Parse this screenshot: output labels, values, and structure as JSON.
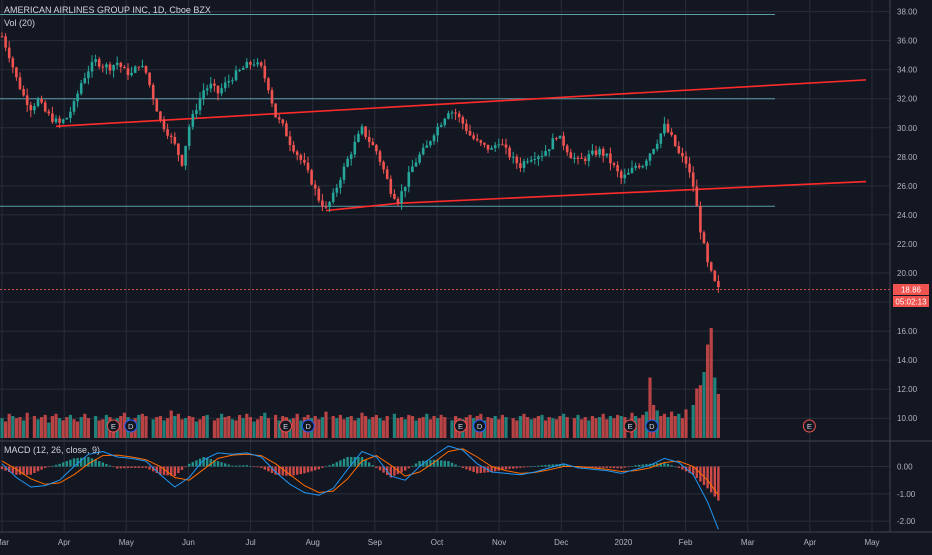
{
  "header": {
    "symbol_line": "AMERICAN AIRLINES GROUP INC, 1D, Cboe BZX",
    "volume_label": "Vol (20)",
    "macd_label": "MACD (12, 26, close, 9)"
  },
  "price_tag": {
    "value": "18.86",
    "countdown": "05:02:13"
  },
  "colors": {
    "background": "#131722",
    "grid": "#2a2e39",
    "up": "#26a69a",
    "down": "#ef5350",
    "trendline": "#ff2b2b",
    "hline": "#5b9ca8",
    "macd": "#2196f3",
    "signal": "#ff6d00",
    "text": "#b2b5be"
  },
  "chart_data": [
    {
      "type": "candlestick",
      "title": "AMERICAN AIRLINES GROUP INC, 1D, Cboe BZX",
      "x_ticks": [
        "Mar",
        "Apr",
        "May",
        "Jun",
        "Jul",
        "Aug",
        "Sep",
        "Oct",
        "Nov",
        "Dec",
        "2020",
        "Feb",
        "Mar",
        "Apr",
        "May"
      ],
      "y_ticks": [
        "38.00",
        "36.00",
        "34.00",
        "32.00",
        "30.00",
        "28.00",
        "26.00",
        "24.00",
        "22.00",
        "20.00",
        "18.00",
        "16.00",
        "14.00",
        "12.00",
        "10.00"
      ],
      "ylim": [
        8.5,
        38.8
      ],
      "last_price": 18.86,
      "close_path": [
        [
          0,
          36.3
        ],
        [
          2,
          35.0
        ],
        [
          4,
          33.4
        ],
        [
          6,
          32.2
        ],
        [
          8,
          31.4
        ],
        [
          10,
          31.9
        ],
        [
          12,
          31.1
        ],
        [
          14,
          30.6
        ],
        [
          16,
          30.3
        ],
        [
          18,
          30.7
        ],
        [
          20,
          31.6
        ],
        [
          22,
          33.1
        ],
        [
          24,
          34.0
        ],
        [
          26,
          34.6
        ],
        [
          28,
          34.3
        ],
        [
          30,
          34.2
        ],
        [
          32,
          34.5
        ],
        [
          34,
          33.9
        ],
        [
          36,
          33.7
        ],
        [
          38,
          34.4
        ],
        [
          40,
          33.8
        ],
        [
          42,
          32.1
        ],
        [
          44,
          30.5
        ],
        [
          46,
          29.7
        ],
        [
          48,
          28.8
        ],
        [
          50,
          27.6
        ],
        [
          52,
          30.1
        ],
        [
          54,
          31.4
        ],
        [
          56,
          32.6
        ],
        [
          58,
          32.9
        ],
        [
          60,
          32.4
        ],
        [
          62,
          33.0
        ],
        [
          64,
          33.5
        ],
        [
          66,
          33.9
        ],
        [
          68,
          34.3
        ],
        [
          70,
          34.5
        ],
        [
          72,
          34.1
        ],
        [
          74,
          32.8
        ],
        [
          76,
          30.8
        ],
        [
          78,
          30.1
        ],
        [
          80,
          29.0
        ],
        [
          82,
          28.2
        ],
        [
          84,
          27.4
        ],
        [
          86,
          26.3
        ],
        [
          88,
          25.1
        ],
        [
          90,
          24.4
        ],
        [
          92,
          25.3
        ],
        [
          94,
          26.6
        ],
        [
          96,
          27.8
        ],
        [
          98,
          28.9
        ],
        [
          100,
          29.9
        ],
        [
          102,
          29.1
        ],
        [
          104,
          28.4
        ],
        [
          106,
          27.1
        ],
        [
          108,
          25.7
        ],
        [
          110,
          25.0
        ],
        [
          112,
          26.1
        ],
        [
          114,
          27.3
        ],
        [
          116,
          28.1
        ],
        [
          118,
          28.7
        ],
        [
          120,
          29.7
        ],
        [
          122,
          30.4
        ],
        [
          124,
          31.2
        ],
        [
          126,
          31.0
        ],
        [
          128,
          30.3
        ],
        [
          130,
          29.5
        ],
        [
          132,
          29.0
        ],
        [
          134,
          28.7
        ],
        [
          136,
          28.5
        ],
        [
          138,
          29.1
        ],
        [
          140,
          28.4
        ],
        [
          142,
          27.8
        ],
        [
          144,
          27.4
        ],
        [
          146,
          27.9
        ],
        [
          148,
          28.1
        ],
        [
          150,
          28.2
        ],
        [
          152,
          28.7
        ],
        [
          154,
          29.5
        ],
        [
          156,
          28.9
        ],
        [
          158,
          28.1
        ],
        [
          160,
          27.7
        ],
        [
          162,
          27.9
        ],
        [
          164,
          28.2
        ],
        [
          166,
          28.4
        ],
        [
          168,
          28.0
        ],
        [
          170,
          27.3
        ],
        [
          172,
          26.5
        ],
        [
          174,
          26.8
        ],
        [
          176,
          27.4
        ],
        [
          178,
          27.5
        ],
        [
          180,
          28.3
        ],
        [
          182,
          29.1
        ],
        [
          184,
          30.1
        ],
        [
          186,
          29.3
        ],
        [
          188,
          28.2
        ],
        [
          190,
          27.6
        ],
        [
          192,
          26.0
        ],
        [
          194,
          23.0
        ],
        [
          196,
          20.6
        ],
        [
          198,
          19.3
        ],
        [
          199,
          18.86
        ]
      ]
    },
    {
      "type": "bar",
      "title": "Vol (20)",
      "relative_heights": [
        0.18,
        0.15,
        0.22,
        0.2,
        0.18,
        0.19,
        0.16,
        0.23,
        0.2,
        0.17,
        0.19,
        0.21,
        0.14,
        0.2,
        0.22,
        0.18,
        0.16,
        0.19,
        0.21,
        0.17,
        0.15,
        0.19,
        0.22,
        0.18,
        0.2,
        0.16,
        0.17,
        0.21,
        0.19,
        0.15,
        0.18,
        0.2,
        0.23,
        0.19,
        0.16,
        0.18,
        0.21,
        0.22,
        0.2,
        0.17,
        0.19,
        0.2,
        0.16,
        0.18,
        0.25,
        0.2,
        0.22,
        0.17,
        0.18,
        0.2,
        0.19,
        0.15,
        0.17,
        0.2,
        0.21,
        0.16,
        0.18,
        0.22,
        0.19,
        0.2,
        0.17,
        0.16,
        0.21,
        0.18,
        0.22,
        0.19,
        0.15,
        0.17,
        0.2,
        0.23,
        0.18,
        0.21,
        0.16,
        0.2,
        0.19,
        0.17,
        0.18,
        0.22,
        0.16,
        0.19,
        0.21,
        0.18,
        0.2,
        0.17,
        0.19,
        0.24,
        0.2,
        0.18,
        0.21,
        0.17,
        0.19,
        0.2,
        0.16,
        0.18,
        0.23,
        0.2,
        0.17,
        0.19,
        0.21,
        0.18,
        0.16,
        0.2,
        0.22,
        0.18,
        0.19,
        0.17,
        0.21,
        0.2,
        0.16,
        0.18,
        0.19,
        0.22,
        0.17,
        0.2,
        0.18,
        0.21,
        0.19,
        0.16,
        0.2,
        0.18,
        0.17,
        0.19,
        0.21,
        0.18,
        0.2,
        0.22,
        0.16,
        0.19,
        0.18,
        0.2,
        0.17,
        0.21,
        0.19,
        0.18,
        0.16,
        0.2,
        0.22,
        0.19,
        0.17,
        0.18,
        0.2,
        0.21,
        0.16,
        0.19,
        0.18,
        0.17,
        0.2,
        0.22,
        0.19,
        0.18,
        0.21,
        0.17,
        0.19,
        0.16,
        0.2,
        0.18,
        0.19,
        0.22,
        0.17,
        0.2,
        0.18,
        0.21,
        0.2,
        0.19,
        0.23,
        0.2,
        0.18,
        0.21,
        0.24,
        0.55,
        0.3,
        0.25,
        0.2,
        0.22,
        0.19,
        0.24,
        0.2,
        0.22,
        0.18,
        0.26,
        0.3,
        0.45,
        0.48,
        0.6,
        0.85,
        1.0,
        0.55,
        0.4
      ],
      "event_markers": [
        {
          "label": "E",
          "at": 0.128
        },
        {
          "label": "D",
          "at": 0.148
        },
        {
          "label": "E",
          "at": 0.326
        },
        {
          "label": "D",
          "at": 0.352
        },
        {
          "label": "E",
          "at": 0.527
        },
        {
          "label": "D",
          "at": 0.549
        },
        {
          "label": "E",
          "at": 0.722
        },
        {
          "label": "D",
          "at": 0.747
        },
        {
          "label": "E",
          "at": 0.928
        }
      ]
    },
    {
      "type": "line",
      "title": "MACD (12, 26, close, 9)",
      "y_ticks": [
        "0.00",
        "-1.00",
        "-2.00"
      ],
      "ylim": [
        -2.4,
        0.9
      ],
      "macd_line": [
        [
          0,
          0.1
        ],
        [
          4,
          -0.4
        ],
        [
          8,
          -0.75
        ],
        [
          12,
          -0.7
        ],
        [
          16,
          -0.5
        ],
        [
          20,
          0.0
        ],
        [
          24,
          0.45
        ],
        [
          28,
          0.55
        ],
        [
          32,
          0.35
        ],
        [
          36,
          0.3
        ],
        [
          40,
          0.2
        ],
        [
          44,
          -0.3
        ],
        [
          48,
          -0.75
        ],
        [
          52,
          -0.4
        ],
        [
          56,
          0.25
        ],
        [
          60,
          0.5
        ],
        [
          64,
          0.45
        ],
        [
          68,
          0.5
        ],
        [
          72,
          0.35
        ],
        [
          76,
          -0.2
        ],
        [
          80,
          -0.65
        ],
        [
          84,
          -0.95
        ],
        [
          88,
          -1.05
        ],
        [
          92,
          -0.8
        ],
        [
          96,
          -0.1
        ],
        [
          100,
          0.55
        ],
        [
          104,
          0.35
        ],
        [
          108,
          -0.35
        ],
        [
          112,
          -0.5
        ],
        [
          116,
          0.0
        ],
        [
          120,
          0.4
        ],
        [
          124,
          0.75
        ],
        [
          128,
          0.6
        ],
        [
          132,
          0.1
        ],
        [
          136,
          -0.2
        ],
        [
          140,
          -0.25
        ],
        [
          144,
          -0.3
        ],
        [
          148,
          -0.2
        ],
        [
          152,
          -0.05
        ],
        [
          156,
          0.1
        ],
        [
          160,
          -0.05
        ],
        [
          164,
          -0.1
        ],
        [
          168,
          -0.15
        ],
        [
          172,
          -0.25
        ],
        [
          176,
          -0.1
        ],
        [
          180,
          0.05
        ],
        [
          184,
          0.3
        ],
        [
          188,
          0.15
        ],
        [
          192,
          -0.3
        ],
        [
          196,
          -1.3
        ],
        [
          199,
          -2.3
        ]
      ],
      "signal_line": [
        [
          0,
          0.2
        ],
        [
          4,
          -0.1
        ],
        [
          8,
          -0.45
        ],
        [
          12,
          -0.65
        ],
        [
          16,
          -0.6
        ],
        [
          20,
          -0.3
        ],
        [
          24,
          0.1
        ],
        [
          28,
          0.4
        ],
        [
          32,
          0.42
        ],
        [
          36,
          0.35
        ],
        [
          40,
          0.25
        ],
        [
          44,
          0.0
        ],
        [
          48,
          -0.4
        ],
        [
          52,
          -0.5
        ],
        [
          56,
          -0.1
        ],
        [
          60,
          0.3
        ],
        [
          64,
          0.42
        ],
        [
          68,
          0.45
        ],
        [
          72,
          0.4
        ],
        [
          76,
          0.1
        ],
        [
          80,
          -0.3
        ],
        [
          84,
          -0.7
        ],
        [
          88,
          -0.95
        ],
        [
          92,
          -0.9
        ],
        [
          96,
          -0.45
        ],
        [
          100,
          0.2
        ],
        [
          104,
          0.4
        ],
        [
          108,
          0.05
        ],
        [
          112,
          -0.35
        ],
        [
          116,
          -0.2
        ],
        [
          120,
          0.15
        ],
        [
          124,
          0.55
        ],
        [
          128,
          0.65
        ],
        [
          132,
          0.35
        ],
        [
          136,
          0.0
        ],
        [
          140,
          -0.15
        ],
        [
          144,
          -0.25
        ],
        [
          148,
          -0.22
        ],
        [
          152,
          -0.12
        ],
        [
          156,
          0.0
        ],
        [
          160,
          0.0
        ],
        [
          164,
          -0.05
        ],
        [
          168,
          -0.1
        ],
        [
          172,
          -0.18
        ],
        [
          176,
          -0.15
        ],
        [
          180,
          -0.05
        ],
        [
          184,
          0.15
        ],
        [
          188,
          0.2
        ],
        [
          192,
          0.0
        ],
        [
          196,
          -0.5
        ],
        [
          199,
          -1.05
        ]
      ]
    }
  ],
  "drawings": {
    "horizontal_lines": [
      37.8,
      32.0,
      24.6
    ],
    "trendlines": [
      {
        "from": [
          15,
          30.1
        ],
        "to": [
          240,
          33.3
        ]
      },
      {
        "from": [
          90,
          24.3
        ],
        "to": [
          110,
          24.8
        ]
      },
      {
        "from": [
          110,
          24.8
        ],
        "to": [
          240,
          26.3
        ]
      }
    ]
  }
}
